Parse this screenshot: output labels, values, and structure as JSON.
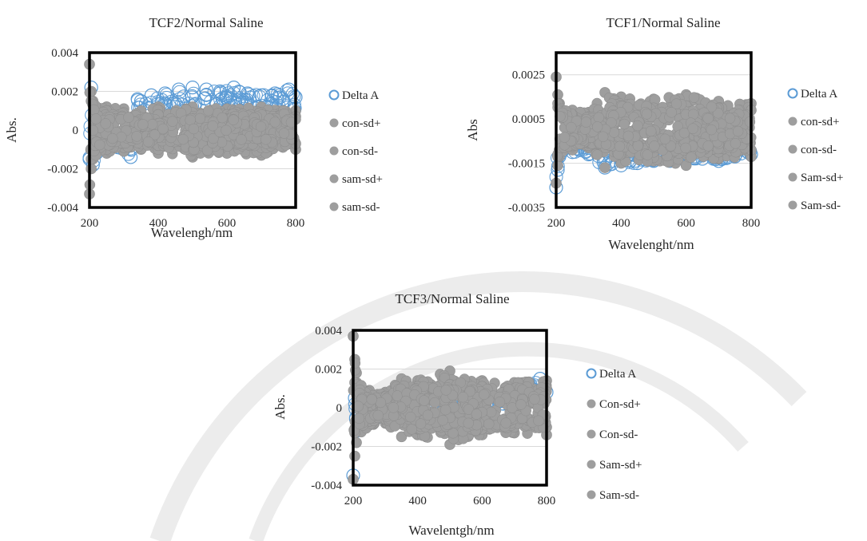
{
  "figure": {
    "watermark_color": "#ececec",
    "colors": {
      "delta": "#5b9bd5",
      "sd": "#9e9e9e",
      "frame": "#000000",
      "grid": "#d9d9d9"
    }
  },
  "chart_data": [
    {
      "id": "tcf2",
      "type": "scatter",
      "title": "TCF2/Normal Saline",
      "xlabel": "Wavelengh/nm",
      "ylabel": "Abs.",
      "xlim": [
        200,
        800
      ],
      "ylim": [
        -0.004,
        0.004
      ],
      "xticks": [
        "200",
        "400",
        "600",
        "800"
      ],
      "yticks": [
        {
          "value": 0.004,
          "label": "0.004"
        },
        {
          "value": 0.002,
          "label": "0.002"
        },
        {
          "value": 0,
          "label": "0"
        },
        {
          "value": -0.002,
          "label": "-0.002"
        },
        {
          "value": -0.004,
          "label": "-0.004"
        }
      ],
      "grid": true,
      "legend_position": "right",
      "legend": [
        "Delta A",
        "con-sd+",
        "con-sd-",
        "sam-sd+",
        "sam-sd-"
      ],
      "series": [
        {
          "name": "Delta A",
          "marker": "open-circle",
          "x": [
            200,
            205,
            210,
            220,
            250,
            300,
            320,
            340,
            350,
            380,
            420,
            460,
            500,
            540,
            580,
            620,
            660,
            700,
            740,
            780,
            800
          ],
          "y": [
            -0.0015,
            0.0022,
            -0.0018,
            -0.0012,
            -0.0008,
            -0.001,
            -0.0014,
            0.0016,
            0.0015,
            0.0018,
            0.0019,
            0.0021,
            0.0022,
            0.0021,
            0.002,
            0.0022,
            0.0019,
            0.0018,
            0.0019,
            0.0021,
            0.0017
          ]
        },
        {
          "name": "con-sd+",
          "marker": "filled-circle",
          "x": [
            200,
            205,
            210,
            250,
            300,
            350,
            400,
            500,
            600,
            700,
            800
          ],
          "y": [
            0.0034,
            0.002,
            0.0015,
            0.0012,
            0.0011,
            0.001,
            0.0012,
            0.0012,
            0.0011,
            0.0012,
            0.001
          ]
        },
        {
          "name": "con-sd-",
          "marker": "filled-circle",
          "x": [
            200,
            205,
            210,
            250,
            300,
            350,
            400,
            500,
            600,
            700,
            800
          ],
          "y": [
            -0.0033,
            -0.002,
            -0.0015,
            -0.0012,
            -0.0011,
            -0.001,
            -0.0012,
            -0.0014,
            -0.0012,
            -0.0013,
            -0.001
          ]
        },
        {
          "name": "sam-sd+",
          "marker": "filled-circle",
          "x": [
            205,
            250,
            300,
            400,
            500,
            600,
            700,
            800
          ],
          "y": [
            0.0015,
            0.001,
            0.0009,
            0.0008,
            0.0009,
            0.0008,
            0.0009,
            0.0007
          ]
        },
        {
          "name": "sam-sd-",
          "marker": "filled-circle",
          "x": [
            205,
            250,
            300,
            400,
            500,
            600,
            700,
            800
          ],
          "y": [
            -0.0015,
            -0.001,
            -0.0009,
            -0.0008,
            -0.0009,
            -0.0008,
            -0.0009,
            -0.0007
          ]
        }
      ]
    },
    {
      "id": "tcf1",
      "type": "scatter",
      "title": "TCF1/Normal Saline",
      "xlabel": "Wavelenght/nm",
      "ylabel": "Abs",
      "xlim": [
        200,
        800
      ],
      "ylim": [
        -0.0035,
        0.0035
      ],
      "xticks": [
        "200",
        "400",
        "600",
        "800"
      ],
      "yticks": [
        {
          "value": 0.0025,
          "label": "0.0025"
        },
        {
          "value": 0.0005,
          "label": "0.0005"
        },
        {
          "value": -0.0015,
          "label": "-0.0015"
        },
        {
          "value": -0.0035,
          "label": "-0.0035"
        }
      ],
      "grid": true,
      "legend_position": "right",
      "legend": [
        "Delta A",
        "con-sd+",
        "con-sd-",
        "Sam-sd+",
        "Sam-sd-"
      ],
      "series": [
        {
          "name": "Delta A",
          "marker": "open-circle",
          "x": [
            200,
            205,
            210,
            250,
            300,
            350,
            400,
            450,
            500,
            550,
            600,
            650,
            700,
            750,
            800
          ],
          "y": [
            -0.0026,
            -0.0018,
            -0.0012,
            -0.001,
            -0.0011,
            -0.0017,
            -0.0016,
            -0.0015,
            -0.0014,
            -0.0014,
            -0.0013,
            -0.0013,
            -0.0014,
            -0.0012,
            -0.0011
          ]
        },
        {
          "name": "con-sd+",
          "marker": "filled-circle",
          "x": [
            200,
            205,
            210,
            250,
            300,
            350,
            400,
            500,
            600,
            700,
            800
          ],
          "y": [
            0.0024,
            0.0016,
            0.0012,
            0.0009,
            0.0008,
            0.0017,
            0.0015,
            0.0014,
            0.0016,
            0.0013,
            0.0012
          ]
        },
        {
          "name": "con-sd-",
          "marker": "filled-circle",
          "x": [
            200,
            205,
            210,
            250,
            300,
            350,
            400,
            500,
            600,
            700,
            800
          ],
          "y": [
            -0.0024,
            -0.0016,
            -0.0012,
            -0.0009,
            -0.0008,
            -0.0017,
            -0.0015,
            -0.0014,
            -0.0016,
            -0.0013,
            -0.0012
          ]
        },
        {
          "name": "Sam-sd+",
          "marker": "filled-circle",
          "x": [
            205,
            250,
            300,
            400,
            500,
            600,
            700,
            800
          ],
          "y": [
            0.0012,
            0.0007,
            0.0006,
            0.0011,
            0.001,
            0.0011,
            0.001,
            0.0009
          ]
        },
        {
          "name": "Sam-sd-",
          "marker": "filled-circle",
          "x": [
            205,
            250,
            300,
            400,
            500,
            600,
            700,
            800
          ],
          "y": [
            -0.0012,
            -0.0007,
            -0.0006,
            -0.0011,
            -0.001,
            -0.0011,
            -0.001,
            -0.0009
          ]
        }
      ]
    },
    {
      "id": "tcf3",
      "type": "scatter",
      "title": "TCF3/Normal Saline",
      "xlabel": "Wavelentgh/nm",
      "ylabel": "Abs.",
      "xlim": [
        200,
        800
      ],
      "ylim": [
        -0.004,
        0.004
      ],
      "xticks": [
        "200",
        "400",
        "600",
        "800"
      ],
      "yticks": [
        {
          "value": 0.004,
          "label": "0.004"
        },
        {
          "value": 0.002,
          "label": "0.002"
        },
        {
          "value": 0,
          "label": "0"
        },
        {
          "value": -0.002,
          "label": "-0.002"
        },
        {
          "value": -0.004,
          "label": "-0.004"
        }
      ],
      "grid": true,
      "legend_position": "right",
      "legend": [
        "Delta A",
        "Con-sd+",
        "Con-sd-",
        "Sam-sd+",
        "Sam-sd-"
      ],
      "series": [
        {
          "name": "Delta A",
          "marker": "open-circle",
          "x": [
            200,
            205,
            210,
            250,
            300,
            350,
            400,
            500,
            600,
            700,
            750,
            780,
            800
          ],
          "y": [
            -0.0035,
            0.0005,
            -0.0012,
            -0.0008,
            -0.0004,
            0.0002,
            0.0003,
            0.0002,
            0.0003,
            0.0004,
            0.0012,
            0.0015,
            0.0008
          ]
        },
        {
          "name": "Con-sd+",
          "marker": "filled-circle",
          "x": [
            200,
            205,
            210,
            250,
            300,
            350,
            400,
            500,
            600,
            700,
            800
          ],
          "y": [
            0.0037,
            0.0025,
            0.0018,
            0.0009,
            0.0008,
            0.0015,
            0.0014,
            0.0019,
            0.0014,
            0.0013,
            0.0014
          ]
        },
        {
          "name": "Con-sd-",
          "marker": "filled-circle",
          "x": [
            200,
            205,
            210,
            250,
            300,
            350,
            400,
            500,
            600,
            700,
            800
          ],
          "y": [
            -0.0037,
            -0.0025,
            -0.0018,
            -0.0009,
            -0.0008,
            -0.0015,
            -0.0014,
            -0.0019,
            -0.0014,
            -0.0013,
            -0.0014
          ]
        },
        {
          "name": "Sam-sd+",
          "marker": "filled-circle",
          "x": [
            205,
            250,
            300,
            400,
            500,
            600,
            700,
            800
          ],
          "y": [
            0.0013,
            0.0007,
            0.0006,
            0.0011,
            0.0012,
            0.0011,
            0.001,
            0.001
          ]
        },
        {
          "name": "Sam-sd-",
          "marker": "filled-circle",
          "x": [
            205,
            250,
            300,
            400,
            500,
            600,
            700,
            800
          ],
          "y": [
            -0.0013,
            -0.0007,
            -0.0006,
            -0.0011,
            -0.0012,
            -0.0011,
            -0.001,
            -0.001
          ]
        }
      ]
    }
  ]
}
